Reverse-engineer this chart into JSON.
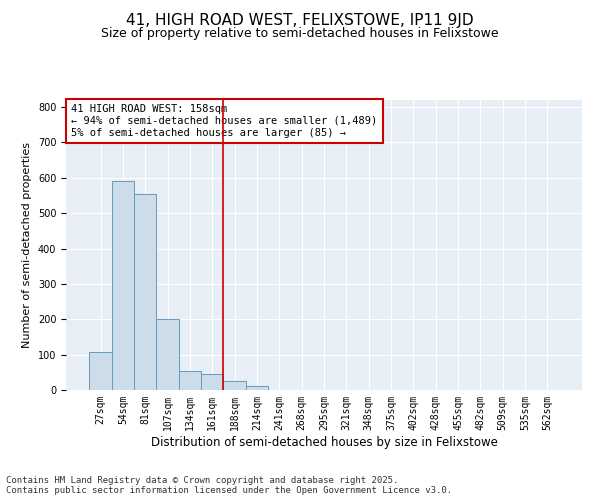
{
  "title": "41, HIGH ROAD WEST, FELIXSTOWE, IP11 9JD",
  "subtitle": "Size of property relative to semi-detached houses in Felixstowe",
  "xlabel": "Distribution of semi-detached houses by size in Felixstowe",
  "ylabel": "Number of semi-detached properties",
  "categories": [
    "27sqm",
    "54sqm",
    "81sqm",
    "107sqm",
    "134sqm",
    "161sqm",
    "188sqm",
    "214sqm",
    "241sqm",
    "268sqm",
    "295sqm",
    "321sqm",
    "348sqm",
    "375sqm",
    "402sqm",
    "428sqm",
    "455sqm",
    "482sqm",
    "509sqm",
    "535sqm",
    "562sqm"
  ],
  "values": [
    108,
    590,
    555,
    200,
    55,
    45,
    25,
    10,
    0,
    0,
    0,
    0,
    0,
    0,
    0,
    0,
    0,
    0,
    0,
    0,
    0
  ],
  "bar_color": "#ccdce8",
  "bar_edge_color": "#6699bb",
  "vline_x": 5.5,
  "vline_color": "#cc0000",
  "annotation_title": "41 HIGH ROAD WEST: 158sqm",
  "annotation_line1": "← 94% of semi-detached houses are smaller (1,489)",
  "annotation_line2": "5% of semi-detached houses are larger (85) →",
  "annotation_box_color": "#cc0000",
  "ylim": [
    0,
    820
  ],
  "yticks": [
    0,
    100,
    200,
    300,
    400,
    500,
    600,
    700,
    800
  ],
  "background_color": "#e8eef5",
  "footer_line1": "Contains HM Land Registry data © Crown copyright and database right 2025.",
  "footer_line2": "Contains public sector information licensed under the Open Government Licence v3.0.",
  "title_fontsize": 11,
  "subtitle_fontsize": 9,
  "annotation_fontsize": 7.5,
  "tick_fontsize": 7,
  "ylabel_fontsize": 8,
  "xlabel_fontsize": 8.5,
  "footer_fontsize": 6.5
}
